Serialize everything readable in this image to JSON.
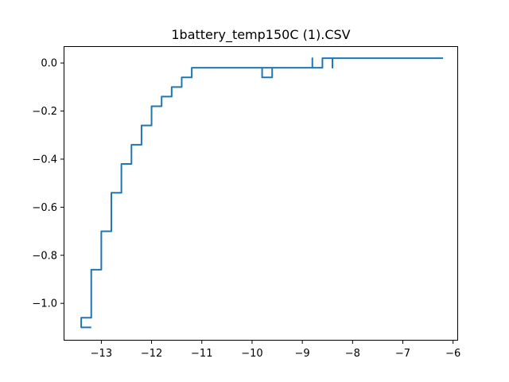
{
  "chart_data": {
    "type": "line",
    "title": "1battery_temp150C (1).CSV",
    "xlabel": "",
    "ylabel": "",
    "xlim": [
      -13.75,
      -5.9
    ],
    "ylim": [
      -1.155,
      0.07
    ],
    "grid": false,
    "x_ticks": [
      {
        "value": -13,
        "label": "−13"
      },
      {
        "value": -12,
        "label": "−12"
      },
      {
        "value": -11,
        "label": "−11"
      },
      {
        "value": -10,
        "label": "−10"
      },
      {
        "value": -9,
        "label": "−9"
      },
      {
        "value": -8,
        "label": "−8"
      },
      {
        "value": -7,
        "label": "−7"
      },
      {
        "value": -6,
        "label": "−6"
      }
    ],
    "y_ticks": [
      {
        "value": 0.0,
        "label": "0.0"
      },
      {
        "value": -0.2,
        "label": "−0.2"
      },
      {
        "value": -0.4,
        "label": "−0.4"
      },
      {
        "value": -0.6,
        "label": "−0.6"
      },
      {
        "value": -0.8,
        "label": "−0.8"
      },
      {
        "value": -1.0,
        "label": "−1.0"
      }
    ],
    "series": [
      {
        "color": "#1f77b4",
        "points": [
          [
            -13.2,
            -1.1
          ],
          [
            -13.4,
            -1.1
          ],
          [
            -13.4,
            -1.06
          ],
          [
            -13.2,
            -1.06
          ],
          [
            -13.2,
            -0.86
          ],
          [
            -13.0,
            -0.86
          ],
          [
            -13.0,
            -0.7
          ],
          [
            -12.8,
            -0.7
          ],
          [
            -12.8,
            -0.54
          ],
          [
            -12.6,
            -0.54
          ],
          [
            -12.6,
            -0.42
          ],
          [
            -12.4,
            -0.42
          ],
          [
            -12.4,
            -0.34
          ],
          [
            -12.2,
            -0.34
          ],
          [
            -12.2,
            -0.26
          ],
          [
            -12.0,
            -0.26
          ],
          [
            -12.0,
            -0.18
          ],
          [
            -11.8,
            -0.18
          ],
          [
            -11.8,
            -0.14
          ],
          [
            -11.6,
            -0.14
          ],
          [
            -11.6,
            -0.1
          ],
          [
            -11.4,
            -0.1
          ],
          [
            -11.4,
            -0.06
          ],
          [
            -11.2,
            -0.06
          ],
          [
            -11.2,
            -0.02
          ],
          [
            -9.8,
            -0.02
          ],
          [
            -9.8,
            -0.06
          ],
          [
            -9.6,
            -0.06
          ],
          [
            -9.6,
            -0.02
          ],
          [
            -9.8,
            -0.02
          ],
          [
            -9.6,
            -0.02
          ],
          [
            -8.8,
            -0.02
          ],
          [
            -8.8,
            0.02
          ],
          [
            -8.8,
            -0.02
          ],
          [
            -8.6,
            -0.02
          ],
          [
            -8.6,
            0.02
          ],
          [
            -8.4,
            0.02
          ],
          [
            -8.4,
            -0.02
          ],
          [
            -8.4,
            0.02
          ],
          [
            -6.2,
            0.02
          ]
        ]
      }
    ]
  }
}
